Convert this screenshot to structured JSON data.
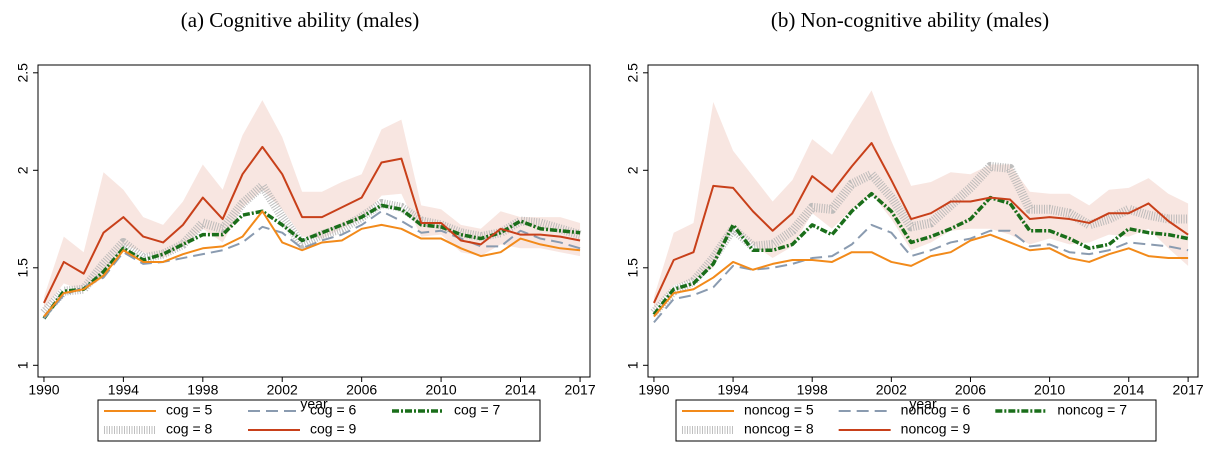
{
  "chart_data": [
    {
      "type": "line",
      "title": "(a) Cognitive ability (males)",
      "x_label": "year",
      "grid": false,
      "x": [
        1990,
        1991,
        1992,
        1993,
        1994,
        1995,
        1996,
        1997,
        1998,
        1999,
        2000,
        2001,
        2002,
        2003,
        2004,
        2005,
        2006,
        2007,
        2008,
        2009,
        2010,
        2011,
        2012,
        2013,
        2014,
        2015,
        2016,
        2017
      ],
      "xlim": [
        1989.7,
        2017.5
      ],
      "xticks": [
        1990,
        1994,
        1998,
        2002,
        2006,
        2010,
        2014,
        2017
      ],
      "ylim": [
        0.94,
        2.54
      ],
      "yticks": [
        1,
        1.5,
        2,
        2.5
      ],
      "legend": "bottom",
      "series": [
        {
          "name": "cog = 5",
          "color": "#f28a1a",
          "style": "solid",
          "values": [
            1.25,
            1.37,
            1.39,
            1.46,
            1.59,
            1.53,
            1.53,
            1.57,
            1.6,
            1.61,
            1.66,
            1.79,
            1.63,
            1.59,
            1.63,
            1.64,
            1.7,
            1.72,
            1.7,
            1.65,
            1.65,
            1.6,
            1.56,
            1.58,
            1.65,
            1.62,
            1.6,
            1.59
          ]
        },
        {
          "name": "cog = 6",
          "color": "#8a9bb0",
          "style": "dash",
          "values": [
            1.24,
            1.36,
            1.4,
            1.45,
            1.58,
            1.52,
            1.53,
            1.55,
            1.57,
            1.59,
            1.63,
            1.71,
            1.68,
            1.6,
            1.64,
            1.67,
            1.72,
            1.79,
            1.74,
            1.68,
            1.69,
            1.65,
            1.61,
            1.61,
            1.69,
            1.65,
            1.63,
            1.6
          ]
        },
        {
          "name": "cog = 7",
          "color": "#1a6e1a",
          "style": "dashdot",
          "values": [
            1.24,
            1.38,
            1.39,
            1.48,
            1.6,
            1.54,
            1.57,
            1.62,
            1.67,
            1.67,
            1.77,
            1.79,
            1.72,
            1.64,
            1.68,
            1.72,
            1.76,
            1.82,
            1.8,
            1.72,
            1.71,
            1.67,
            1.65,
            1.68,
            1.74,
            1.7,
            1.69,
            1.68
          ]
        },
        {
          "name": "cog = 8",
          "color": "#b4b4b4",
          "style": "hatch",
          "values": [
            1.27,
            1.38,
            1.39,
            1.52,
            1.63,
            1.55,
            1.57,
            1.62,
            1.73,
            1.7,
            1.83,
            1.92,
            1.76,
            1.62,
            1.67,
            1.7,
            1.76,
            1.83,
            1.81,
            1.74,
            1.72,
            1.68,
            1.66,
            1.68,
            1.74,
            1.73,
            1.7,
            1.67
          ]
        },
        {
          "name": "cog = 9",
          "color": "#c8401a",
          "style": "solid",
          "values": [
            1.32,
            1.53,
            1.47,
            1.68,
            1.76,
            1.66,
            1.63,
            1.72,
            1.86,
            1.75,
            1.98,
            2.12,
            1.98,
            1.76,
            1.76,
            1.81,
            1.86,
            2.04,
            2.06,
            1.73,
            1.73,
            1.64,
            1.62,
            1.7,
            1.67,
            1.67,
            1.66,
            1.64
          ],
          "band": {
            "lower": [
              1.29,
              1.42,
              1.38,
              1.45,
              1.62,
              1.58,
              1.55,
              1.61,
              1.7,
              1.63,
              1.81,
              1.9,
              1.8,
              1.66,
              1.65,
              1.7,
              1.75,
              1.87,
              1.88,
              1.66,
              1.67,
              1.58,
              1.56,
              1.62,
              1.6,
              1.6,
              1.58,
              1.56
            ],
            "upper": [
              1.35,
              1.66,
              1.58,
              1.99,
              1.9,
              1.76,
              1.72,
              1.84,
              2.03,
              1.9,
              2.18,
              2.36,
              2.17,
              1.89,
              1.89,
              1.94,
              1.98,
              2.21,
              2.26,
              1.82,
              1.8,
              1.72,
              1.7,
              1.79,
              1.76,
              1.76,
              1.76,
              1.73
            ]
          }
        }
      ]
    },
    {
      "type": "line",
      "title": "(b) Non-cognitive ability (males)",
      "x_label": "year",
      "grid": false,
      "x": [
        1990,
        1991,
        1992,
        1993,
        1994,
        1995,
        1996,
        1997,
        1998,
        1999,
        2000,
        2001,
        2002,
        2003,
        2004,
        2005,
        2006,
        2007,
        2008,
        2009,
        2010,
        2011,
        2012,
        2013,
        2014,
        2015,
        2016,
        2017
      ],
      "xlim": [
        1989.7,
        2017.5
      ],
      "xticks": [
        1990,
        1994,
        1998,
        2002,
        2006,
        2010,
        2014,
        2017
      ],
      "ylim": [
        0.94,
        2.54
      ],
      "yticks": [
        1,
        1.5,
        2,
        2.5
      ],
      "legend": "bottom",
      "series": [
        {
          "name": "noncog = 5",
          "color": "#f28a1a",
          "style": "solid",
          "values": [
            1.25,
            1.37,
            1.39,
            1.45,
            1.53,
            1.49,
            1.52,
            1.54,
            1.54,
            1.53,
            1.58,
            1.58,
            1.53,
            1.51,
            1.56,
            1.58,
            1.64,
            1.67,
            1.63,
            1.59,
            1.6,
            1.55,
            1.53,
            1.57,
            1.6,
            1.56,
            1.55,
            1.55
          ]
        },
        {
          "name": "noncog = 6",
          "color": "#8a9bb0",
          "style": "dash",
          "values": [
            1.22,
            1.34,
            1.36,
            1.4,
            1.51,
            1.49,
            1.5,
            1.52,
            1.55,
            1.56,
            1.62,
            1.72,
            1.68,
            1.56,
            1.59,
            1.63,
            1.65,
            1.69,
            1.69,
            1.61,
            1.62,
            1.58,
            1.57,
            1.59,
            1.63,
            1.62,
            1.61,
            1.59
          ]
        },
        {
          "name": "noncog = 7",
          "color": "#1a6e1a",
          "style": "dashdot",
          "values": [
            1.26,
            1.39,
            1.42,
            1.52,
            1.72,
            1.59,
            1.59,
            1.62,
            1.72,
            1.67,
            1.79,
            1.88,
            1.79,
            1.63,
            1.66,
            1.7,
            1.75,
            1.86,
            1.83,
            1.69,
            1.69,
            1.65,
            1.6,
            1.62,
            1.7,
            1.68,
            1.67,
            1.65
          ]
        },
        {
          "name": "noncog = 8",
          "color": "#b4b4b4",
          "style": "hatch",
          "values": [
            1.27,
            1.38,
            1.43,
            1.55,
            1.7,
            1.61,
            1.62,
            1.69,
            1.81,
            1.8,
            1.93,
            1.98,
            1.86,
            1.71,
            1.73,
            1.82,
            1.91,
            2.02,
            2.01,
            1.8,
            1.8,
            1.78,
            1.72,
            1.75,
            1.8,
            1.77,
            1.75,
            1.75
          ]
        },
        {
          "name": "noncog = 9",
          "color": "#c8401a",
          "style": "solid",
          "values": [
            1.32,
            1.54,
            1.58,
            1.92,
            1.91,
            1.79,
            1.69,
            1.78,
            1.97,
            1.89,
            2.02,
            2.14,
            1.95,
            1.75,
            1.78,
            1.84,
            1.84,
            1.86,
            1.85,
            1.75,
            1.76,
            1.75,
            1.73,
            1.78,
            1.78,
            1.83,
            1.74,
            1.67
          ],
          "band": {
            "lower": [
              1.29,
              1.41,
              1.44,
              1.5,
              1.72,
              1.62,
              1.55,
              1.61,
              1.78,
              1.7,
              1.8,
              1.88,
              1.75,
              1.59,
              1.63,
              1.69,
              1.7,
              1.7,
              1.67,
              1.62,
              1.65,
              1.62,
              1.63,
              1.67,
              1.66,
              1.7,
              1.6,
              1.51
            ],
            "upper": [
              1.35,
              1.68,
              1.73,
              2.35,
              2.1,
              1.97,
              1.84,
              1.95,
              2.16,
              2.08,
              2.25,
              2.41,
              2.15,
              1.92,
              1.94,
              1.99,
              1.98,
              2.03,
              2.03,
              1.89,
              1.88,
              1.88,
              1.82,
              1.9,
              1.91,
              1.96,
              1.88,
              1.83
            ]
          }
        }
      ]
    }
  ]
}
